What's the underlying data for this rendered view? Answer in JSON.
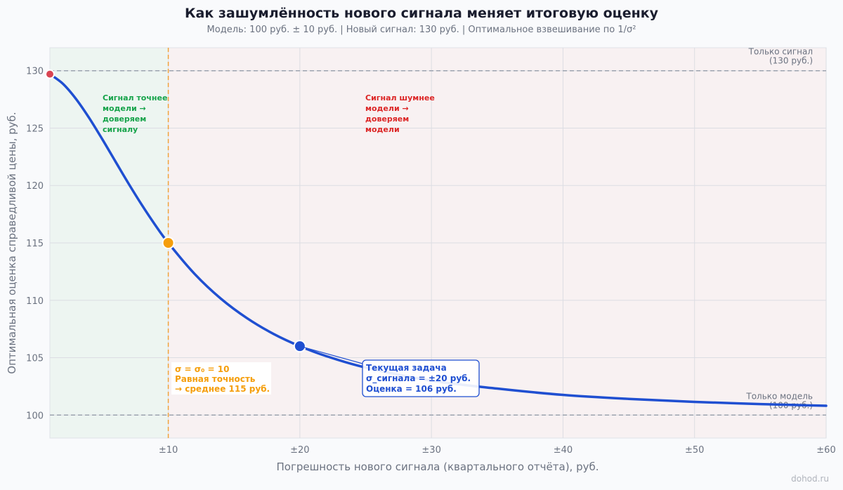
{
  "chart_data": {
    "type": "line",
    "title": "Как зашумлённость нового сигнала меняет итоговую оценку",
    "subtitle": "Модель: 100 руб. ± 10 руб.  |  Новый сигнал: 130 руб.  |  Оптимальное взвешивание по 1/σ²",
    "xlabel": "Погрешность нового сигнала (квартального отчёта), руб.",
    "ylabel": "Оптимальная оценка справедливой цены, руб.",
    "xlim": [
      1,
      60
    ],
    "ylim": [
      98,
      132
    ],
    "x_ticks": [
      10,
      20,
      30,
      40,
      50,
      60
    ],
    "x_tick_labels": [
      "±10",
      "±20",
      "±30",
      "±40",
      "±50",
      "±60"
    ],
    "y_ticks": [
      100,
      105,
      110,
      115,
      120,
      125,
      130
    ],
    "grid": true,
    "model": {
      "value": 100,
      "sigma": 10
    },
    "signal": {
      "value": 130
    },
    "series": [
      {
        "color": "#1f4fd1",
        "x": [
          1,
          2,
          3,
          4,
          5,
          6,
          7,
          8,
          9,
          10,
          12,
          14,
          16,
          18,
          20,
          22,
          25,
          30,
          35,
          40,
          45,
          50,
          55,
          60
        ],
        "y": [
          129.7,
          128.85,
          127.52,
          125.86,
          124.0,
          122.06,
          120.13,
          118.29,
          116.57,
          115.0,
          112.3,
          110.14,
          108.43,
          107.07,
          106.0,
          105.14,
          104.14,
          103.0,
          102.31,
          101.76,
          101.41,
          101.15,
          100.96,
          100.81
        ]
      }
    ],
    "reference_lines": [
      {
        "id": "signal",
        "y": 130,
        "label_line1": "Только сигнал",
        "label_line2": "(130 руб.)"
      },
      {
        "id": "model",
        "y": 100,
        "label_line1": "Только модель",
        "label_line2": "(100 руб.)"
      }
    ],
    "threshold_x": 10,
    "zones": [
      {
        "id": "left",
        "color": "#16a34a",
        "lines": [
          "Сигнал точнее",
          "модели →",
          "доверяем",
          "сигналу"
        ]
      },
      {
        "id": "right",
        "color": "#dc2626",
        "lines": [
          "Сигнал шумнее",
          "модели →",
          "доверяем",
          "модели"
        ]
      }
    ],
    "markers": [
      {
        "id": "start",
        "x": 1,
        "y": 129.7,
        "color": "#d94452"
      },
      {
        "id": "equal",
        "x": 10,
        "y": 115,
        "color": "#f59e0b"
      },
      {
        "id": "current",
        "x": 20,
        "y": 106,
        "color": "#1f4fd1"
      }
    ],
    "annotations": {
      "equal": {
        "color": "#f59e0b",
        "lines": [
          "σ = σ₀ = 10",
          "Равная точность",
          "→ среднее 115 руб."
        ]
      },
      "current": {
        "color": "#1f4fd1",
        "lines": [
          "Текущая задача",
          "σ_сигнала = ±20 руб.",
          "Оценка = 106 руб."
        ]
      }
    }
  },
  "watermark": "dohod.ru"
}
